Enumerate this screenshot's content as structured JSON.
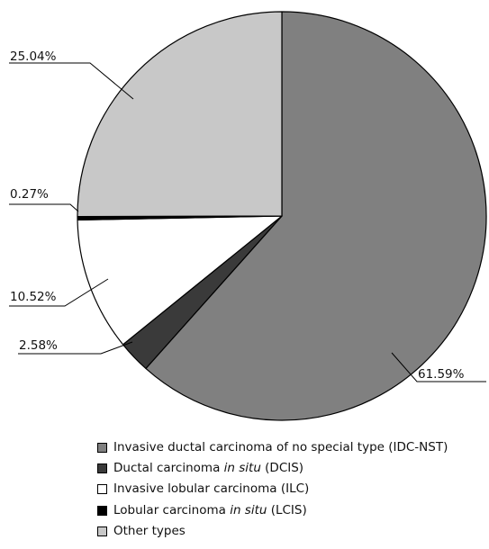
{
  "chart_data": {
    "type": "pie",
    "title": "",
    "start_angle_deg": 0,
    "direction": "clockwise",
    "slices": [
      {
        "key": "idc",
        "value": 61.59,
        "label": "61.59%",
        "color": "#808080",
        "legend_pre": "Invasive ductal carcinoma of no special type (IDC-NST)",
        "legend_em": "",
        "legend_post": ""
      },
      {
        "key": "dcis",
        "value": 2.58,
        "label": "2.58%",
        "color": "#3a3a3a",
        "legend_pre": "Ductal carcinoma ",
        "legend_em": "in situ",
        "legend_post": " (DCIS)"
      },
      {
        "key": "ilc",
        "value": 10.52,
        "label": "10.52%",
        "color": "#ffffff",
        "legend_pre": "Invasive lobular carcinoma (ILC)",
        "legend_em": "",
        "legend_post": ""
      },
      {
        "key": "lcis",
        "value": 0.27,
        "label": "0.27%",
        "color": "#000000",
        "legend_pre": "Lobular carcinoma ",
        "legend_em": "in situ",
        "legend_post": " (LCIS)"
      },
      {
        "key": "other",
        "value": 25.04,
        "label": "25.04%",
        "color": "#c8c8c8",
        "legend_pre": "Other types",
        "legend_em": "",
        "legend_post": ""
      }
    ]
  }
}
